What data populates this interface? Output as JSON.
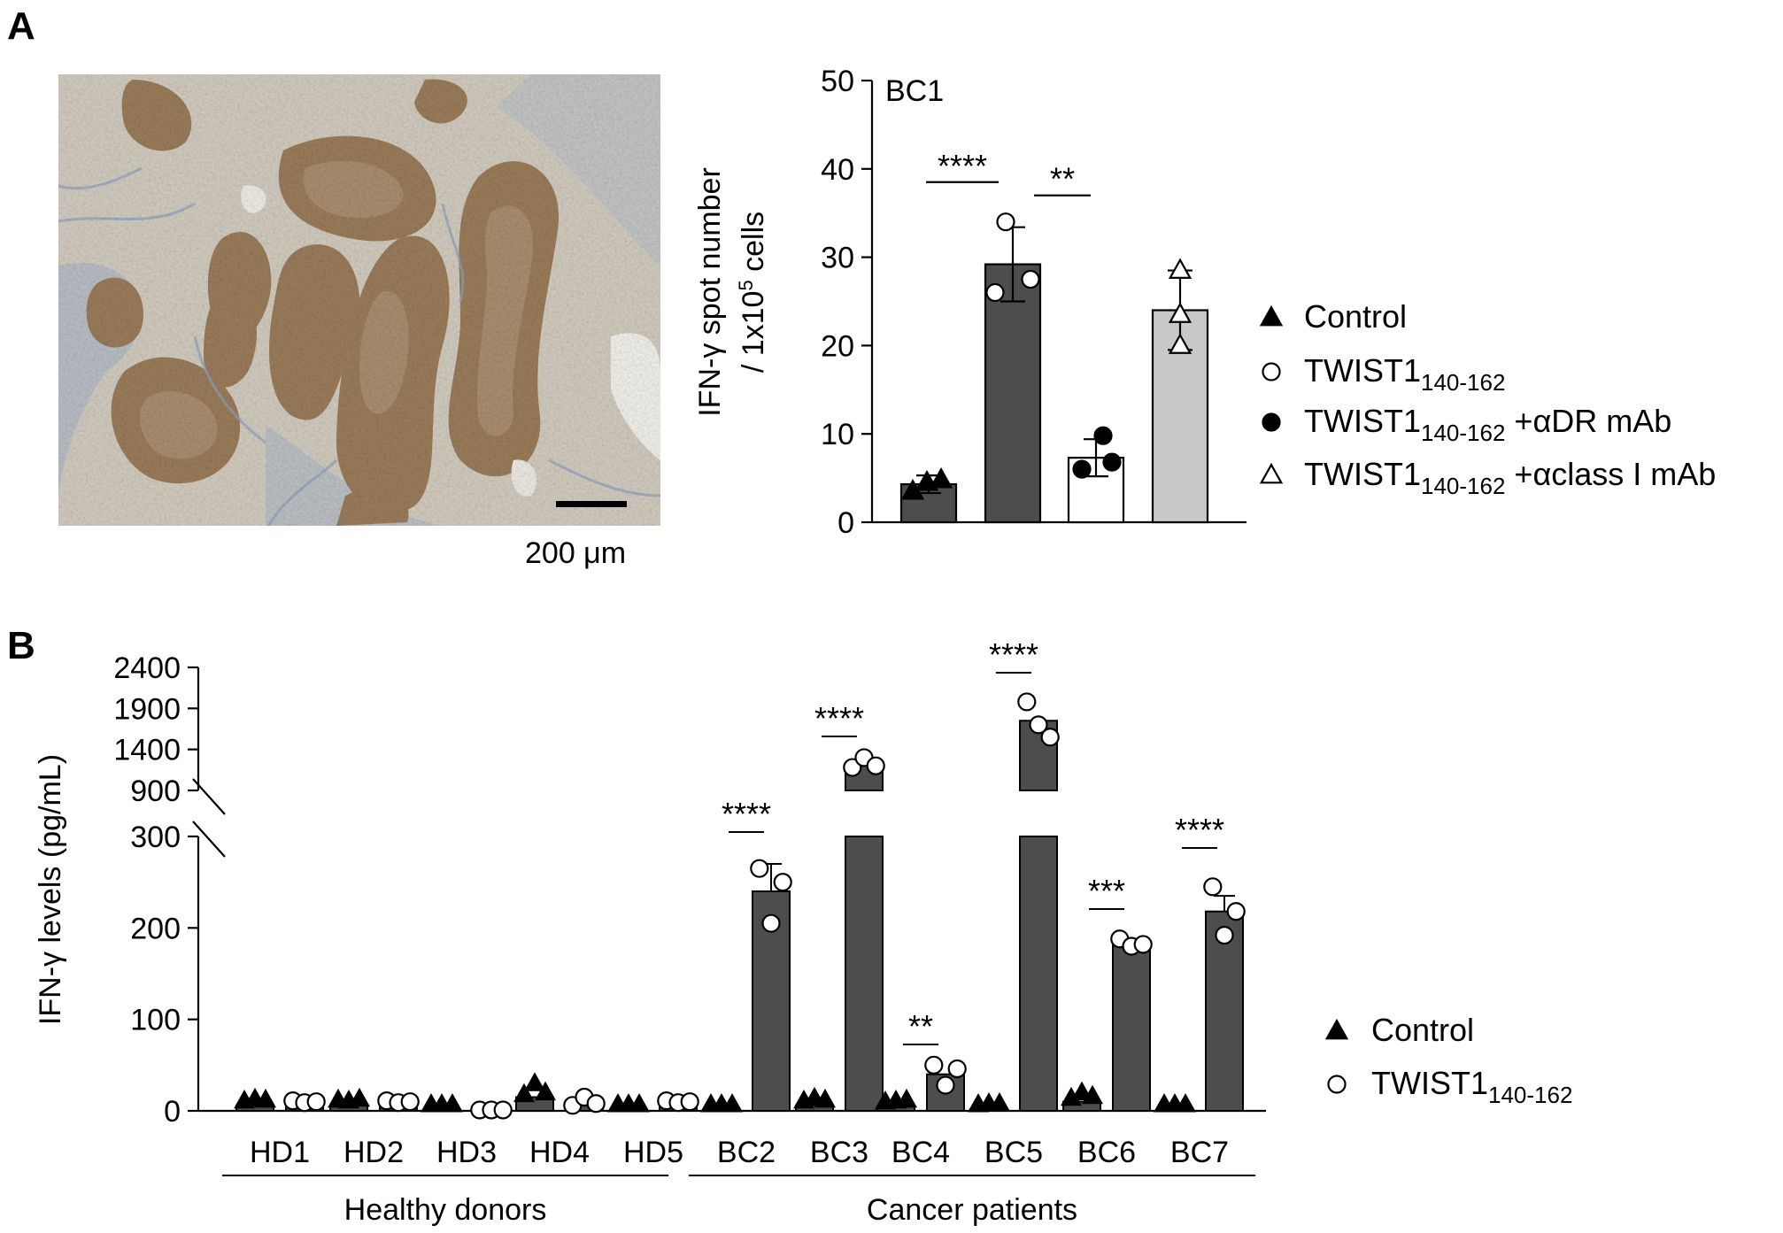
{
  "panel_labels": {
    "a": "A",
    "b": "B"
  },
  "colors": {
    "dark_bar": "#4d4d4d",
    "light_bar": "#c8c8c8",
    "white_bar": "#ffffff",
    "tissue_background": "#cfc9bc",
    "tissue_stain": "#8c7253",
    "tissue_counterstain": "#8ea2c2"
  },
  "micrograph": {
    "scale_bar_label": "200 μm",
    "scale_bar_length_um": 200
  },
  "legend_a": {
    "items": [
      {
        "marker": "filled-triangle",
        "text": "Control",
        "sub": "",
        "suffix": ""
      },
      {
        "marker": "open-circle",
        "text": "TWIST1",
        "sub": "140-162",
        "suffix": ""
      },
      {
        "marker": "filled-circle",
        "text": "TWIST1",
        "sub": "140-162",
        "suffix": " +αDR mAb"
      },
      {
        "marker": "open-triangle",
        "text": "TWIST1",
        "sub": "140-162",
        "suffix": " +αclass I mAb"
      }
    ]
  },
  "legend_b": {
    "items": [
      {
        "marker": "filled-triangle",
        "text": "Control",
        "sub": ""
      },
      {
        "marker": "open-circle",
        "text": "TWIST1",
        "sub": "140-162"
      }
    ]
  },
  "chart_data": [
    {
      "panel": "A",
      "type": "bar",
      "title": "BC1",
      "ylabel_line1": "IFN-γ spot number",
      "ylabel_line2": "/ 1x10",
      "ylabel_sup": "5",
      "ylabel_line2_end": " cells",
      "ylim": [
        0,
        50
      ],
      "yticks": [
        0,
        10,
        20,
        30,
        40,
        50
      ],
      "bars": [
        {
          "group": "Control",
          "fill": "dark",
          "mean": 4.3,
          "sd": 1.0,
          "points": [
            3.5,
            4.5,
            4.8
          ],
          "marker": "filled-triangle"
        },
        {
          "group": "TWIST1 140-162",
          "fill": "dark",
          "mean": 29.2,
          "sd": 4.2,
          "points": [
            34.0,
            26.0,
            27.5
          ],
          "marker": "open-circle"
        },
        {
          "group": "TWIST1 140-162 +αDR mAb",
          "fill": "white",
          "mean": 7.3,
          "sd": 2.1,
          "points": [
            9.8,
            6.0,
            6.8
          ],
          "marker": "filled-circle"
        },
        {
          "group": "TWIST1 140-162 +αclass I mAb",
          "fill": "light",
          "mean": 24.0,
          "sd": 4.5,
          "points": [
            28.5,
            23.5,
            20.0
          ],
          "marker": "open-triangle"
        }
      ],
      "significance": [
        {
          "from": 0,
          "to": 1,
          "label": "****",
          "y": 38.5
        },
        {
          "from": 1,
          "to": 2,
          "label": "**",
          "y": 37.0
        }
      ],
      "grid": false
    },
    {
      "panel": "B",
      "type": "bar",
      "ylabel": "IFN-γ levels (pg/mL)",
      "y_axis": "broken",
      "yticks_lower": [
        0,
        100,
        200,
        300
      ],
      "yticks_upper": [
        900,
        1400,
        1900,
        2400
      ],
      "categories": [
        "HD1",
        "HD2",
        "HD3",
        "HD4",
        "HD5",
        "BC2",
        "BC3",
        "BC4",
        "BC5",
        "BC6",
        "BC7"
      ],
      "group_labels": [
        {
          "label": "Healthy donors",
          "from": 0,
          "to": 4
        },
        {
          "label": "Cancer patients",
          "from": 5,
          "to": 10
        }
      ],
      "series": [
        {
          "name": "Control",
          "marker": "filled-triangle",
          "values": [
            6,
            6,
            1,
            15,
            1,
            1,
            6,
            5,
            2,
            10,
            1
          ],
          "points": [
            [
              5,
              7,
              6
            ],
            [
              6,
              5,
              7
            ],
            [
              1,
              1,
              1
            ],
            [
              12,
              24,
              14
            ],
            [
              1,
              1,
              1
            ],
            [
              1,
              1,
              1
            ],
            [
              5,
              8,
              6
            ],
            [
              4,
              5,
              6
            ],
            [
              1,
              2,
              2
            ],
            [
              8,
              14,
              10
            ],
            [
              1,
              1,
              1
            ]
          ]
        },
        {
          "name": "TWIST1 140-162",
          "marker": "open-circle",
          "values": [
            10,
            10,
            1,
            10,
            10,
            240,
            1220,
            40,
            1750,
            183,
            218
          ],
          "points": [
            [
              11,
              9,
              10
            ],
            [
              11,
              9,
              10
            ],
            [
              1,
              1,
              1
            ],
            [
              6,
              15,
              8
            ],
            [
              11,
              9,
              10
            ],
            [
              265,
              205,
              250
            ],
            [
              1180,
              1300,
              1200
            ],
            [
              50,
              28,
              46
            ],
            [
              1980,
              1700,
              1550
            ],
            [
              188,
              180,
              182
            ],
            [
              245,
              192,
              218
            ]
          ],
          "error": [
            0,
            0,
            0,
            0,
            0,
            30,
            0,
            0,
            0,
            0,
            17
          ]
        }
      ],
      "significance": [
        {
          "category": "BC2",
          "label": "****"
        },
        {
          "category": "BC3",
          "label": "****"
        },
        {
          "category": "BC4",
          "label": "**"
        },
        {
          "category": "BC5",
          "label": "****"
        },
        {
          "category": "BC6",
          "label": "***"
        },
        {
          "category": "BC7",
          "label": "****"
        }
      ],
      "grid": false
    }
  ]
}
